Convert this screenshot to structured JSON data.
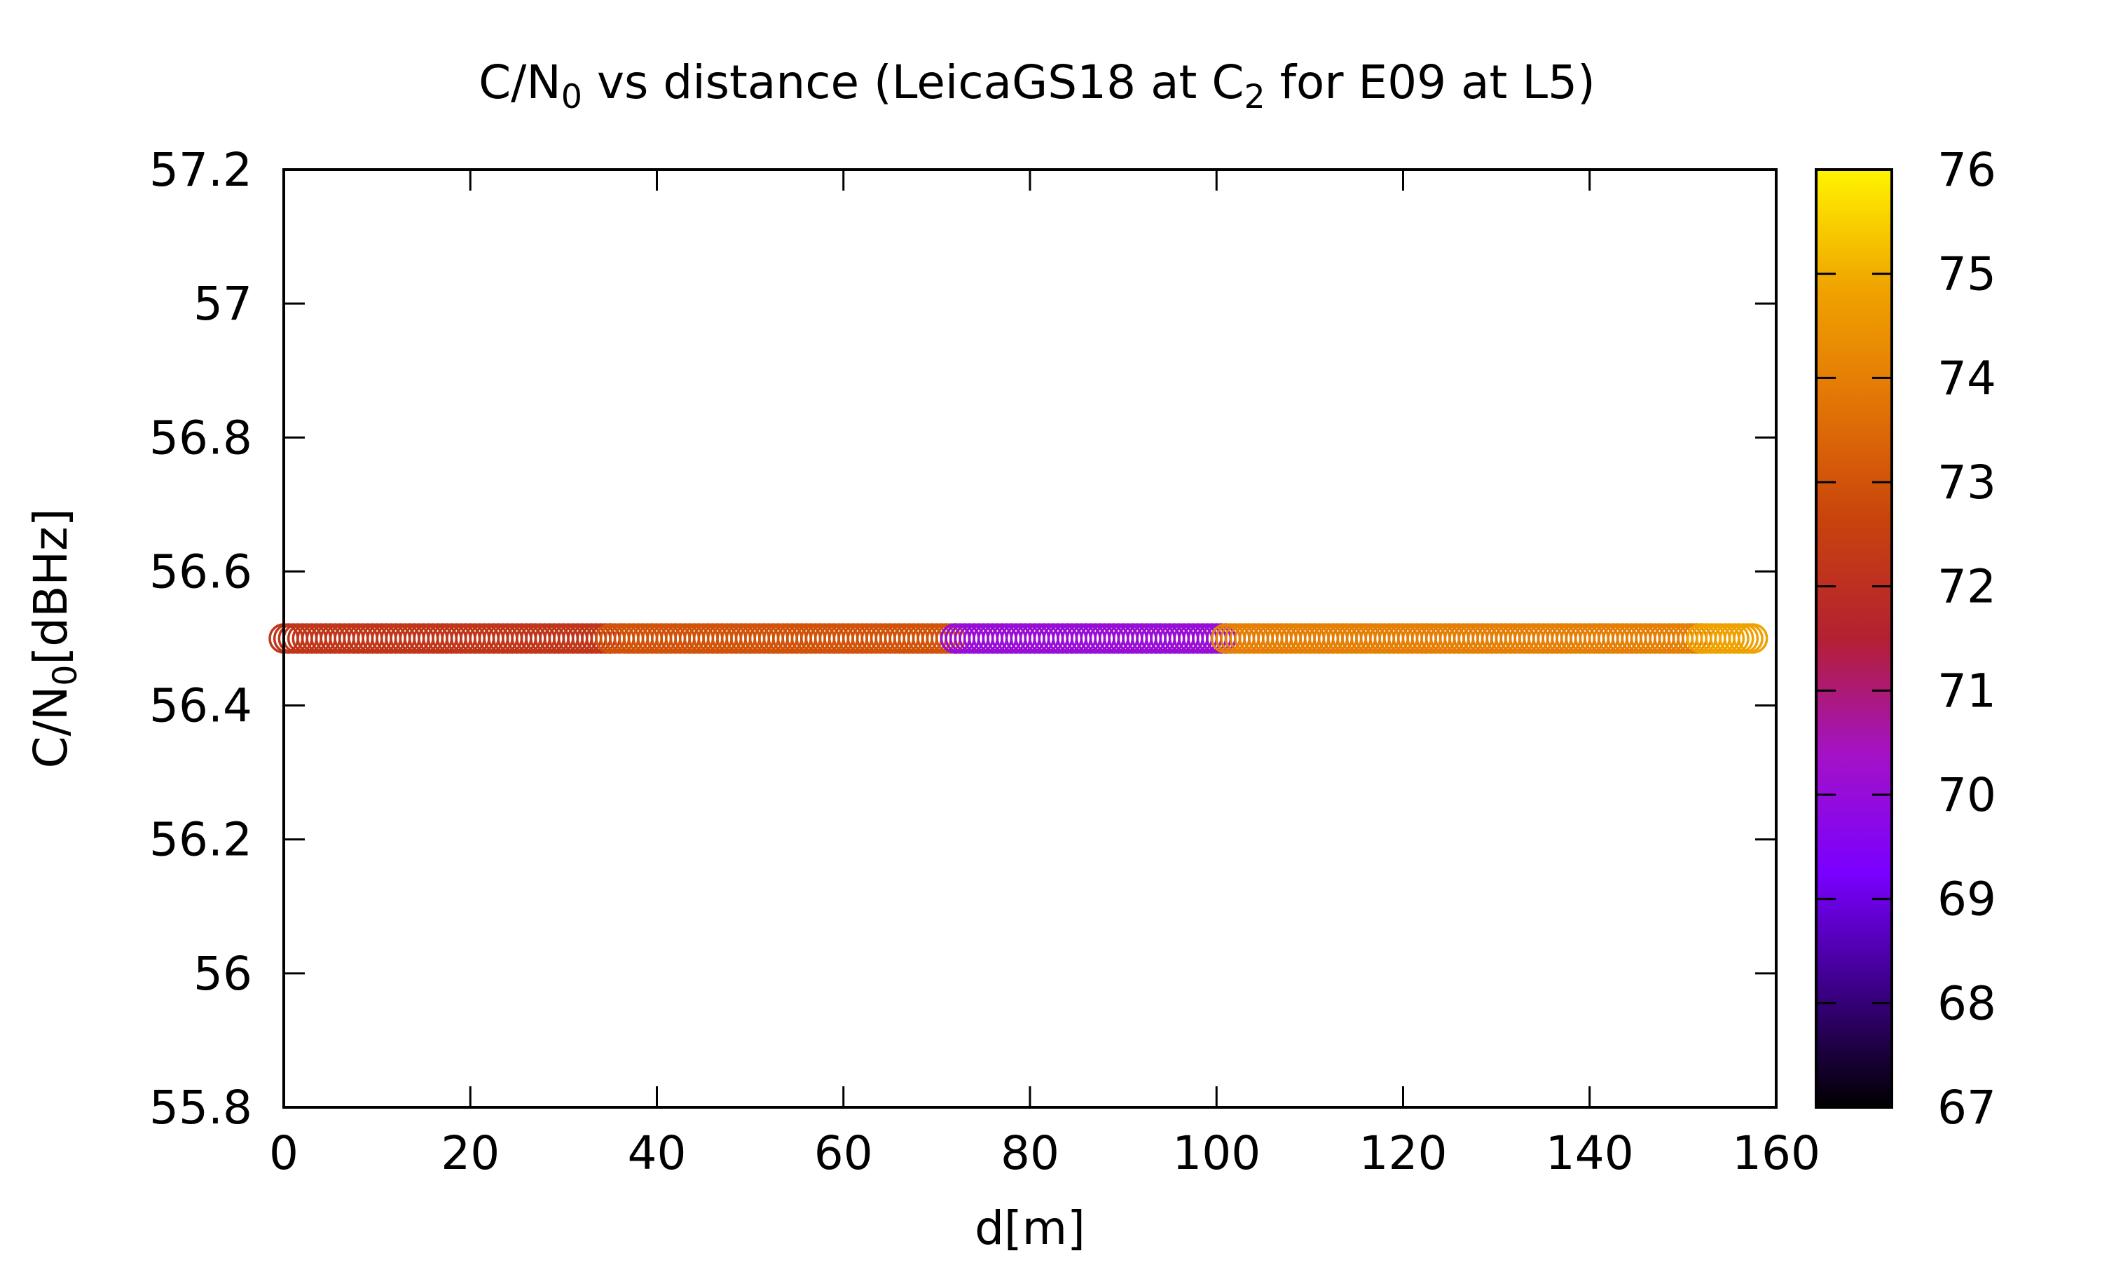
{
  "chart_data": {
    "type": "scatter",
    "title": {
      "parts": [
        {
          "text": "C/N",
          "sub": false
        },
        {
          "text": "0",
          "sub": true
        },
        {
          "text": " vs distance (LeicaGS18 at C",
          "sub": false
        },
        {
          "text": "2",
          "sub": true
        },
        {
          "text": " for E09 at L5)",
          "sub": false
        }
      ]
    },
    "xlabel": "d[m]",
    "ylabel": {
      "parts": [
        {
          "text": "C/N",
          "sub": false
        },
        {
          "text": "0",
          "sub": true
        },
        {
          "text": "[dBHz]",
          "sub": false
        }
      ]
    },
    "xlim": [
      0,
      160
    ],
    "ylim": [
      55.8,
      57.2
    ],
    "xticks": [
      0,
      20,
      40,
      60,
      80,
      100,
      120,
      140,
      160
    ],
    "yticks": [
      55.8,
      56,
      56.2,
      56.4,
      56.6,
      56.8,
      57,
      57.2
    ],
    "xtick_labels": [
      "0",
      "20",
      "40",
      "60",
      "80",
      "100",
      "120",
      "140",
      "160"
    ],
    "ytick_labels": [
      "55.8",
      "56",
      "56.2",
      "56.4",
      "56.6",
      "56.8",
      "57",
      "57.2"
    ],
    "grid": false,
    "colorbar": {
      "range": [
        67,
        76
      ],
      "ticks": [
        67,
        68,
        69,
        70,
        71,
        72,
        73,
        74,
        75,
        76
      ],
      "tick_labels": [
        "67",
        "68",
        "69",
        "70",
        "71",
        "72",
        "73",
        "74",
        "75",
        "76"
      ],
      "colormap": "gnuplot-rgbformulae-7-5-15",
      "stops": [
        "#000000",
        "#3b0085",
        "#7a00ff",
        "#a312c8",
        "#b42032",
        "#c8430c",
        "#e27406",
        "#f0a400",
        "#fff400"
      ]
    },
    "series": [
      {
        "marker": "open-circle",
        "y_constant": 56.5,
        "segments": [
          {
            "x_start": 0,
            "x_end": 35,
            "step": 0.5,
            "color_value": 72.2
          },
          {
            "x_start": 35,
            "x_end": 72,
            "step": 0.5,
            "color_value": 73.0
          },
          {
            "x_start": 72,
            "x_end": 101,
            "step": 0.5,
            "color_value": 70.1
          },
          {
            "x_start": 101,
            "x_end": 152,
            "step": 0.5,
            "color_value": 74.0
          },
          {
            "x_start": 152,
            "x_end": 157.5,
            "step": 0.5,
            "color_value": 74.8
          }
        ]
      }
    ]
  }
}
